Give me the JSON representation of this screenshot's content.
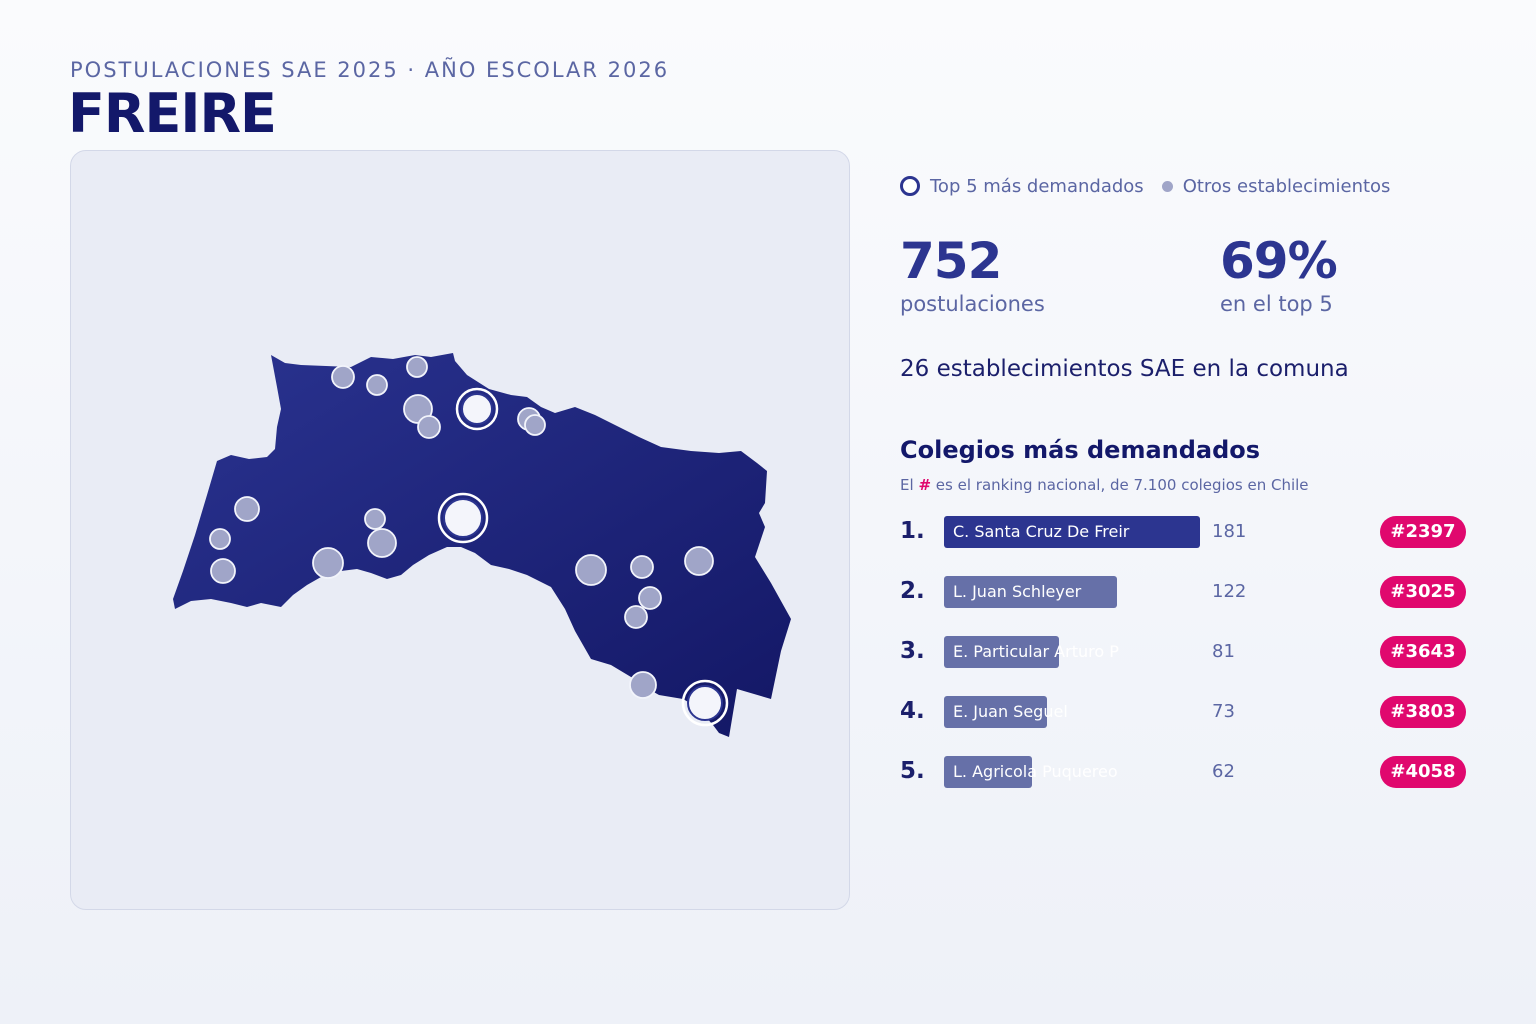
{
  "header": {
    "subtitle": "POSTULACIONES SAE 2025 · AÑO ESCOLAR 2026",
    "title": "FREIRE"
  },
  "legend": {
    "top5_label": "Top 5 más demandados",
    "others_label": "Otros establecimientos"
  },
  "stats": {
    "postulaciones_value": "752",
    "postulaciones_label": "postulaciones",
    "top5_value": "69%",
    "top5_label": "en el top 5",
    "establecimientos_line": "26 establecimientos SAE en la comuna"
  },
  "ranking": {
    "title": "Colegios más demandados",
    "note_prefix": "El",
    "note_hash": "#",
    "note_suffix": "es el ranking nacional, de 7.100 colegios en Chile",
    "items": [
      {
        "pos": "1.",
        "name": "C. Santa Cruz De Freir",
        "value": 181,
        "rank": "#2397"
      },
      {
        "pos": "2.",
        "name": "L. Juan Schleyer",
        "value": 122,
        "rank": "#3025"
      },
      {
        "pos": "3.",
        "name": "E. Particular Arturo P",
        "value": 81,
        "rank": "#3643"
      },
      {
        "pos": "4.",
        "name": "E. Juan Seguel",
        "value": 73,
        "rank": "#3803"
      },
      {
        "pos": "5.",
        "name": "L. Agricola Puquereo",
        "value": 62,
        "rank": "#4058"
      }
    ]
  },
  "colors": {
    "region_fill": "#1f2679",
    "accent": "#2c3590",
    "badge": "#e0086e",
    "dot": "#a0a5c8"
  }
}
